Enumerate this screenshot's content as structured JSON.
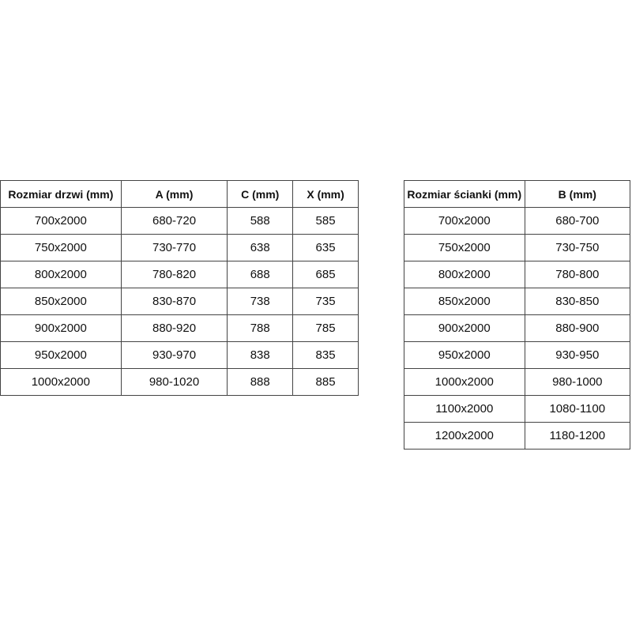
{
  "door_table": {
    "headers": [
      "Rozmiar drzwi (mm)",
      "A (mm)",
      "C (mm)",
      "X (mm)"
    ],
    "rows": [
      [
        "700x2000",
        "680-720",
        "588",
        "585"
      ],
      [
        "750x2000",
        "730-770",
        "638",
        "635"
      ],
      [
        "800x2000",
        "780-820",
        "688",
        "685"
      ],
      [
        "850x2000",
        "830-870",
        "738",
        "735"
      ],
      [
        "900x2000",
        "880-920",
        "788",
        "785"
      ],
      [
        "950x2000",
        "930-970",
        "838",
        "835"
      ],
      [
        "1000x2000",
        "980-1020",
        "888",
        "885"
      ]
    ]
  },
  "wall_table": {
    "headers": [
      "Rozmiar ścianki (mm)",
      "B (mm)"
    ],
    "rows": [
      [
        "700x2000",
        "680-700"
      ],
      [
        "750x2000",
        "730-750"
      ],
      [
        "800x2000",
        "780-800"
      ],
      [
        "850x2000",
        "830-850"
      ],
      [
        "900x2000",
        "880-900"
      ],
      [
        "950x2000",
        "930-950"
      ],
      [
        "1000x2000",
        "980-1000"
      ],
      [
        "1100x2000",
        "1080-1100"
      ],
      [
        "1200x2000",
        "1180-1200"
      ]
    ]
  }
}
